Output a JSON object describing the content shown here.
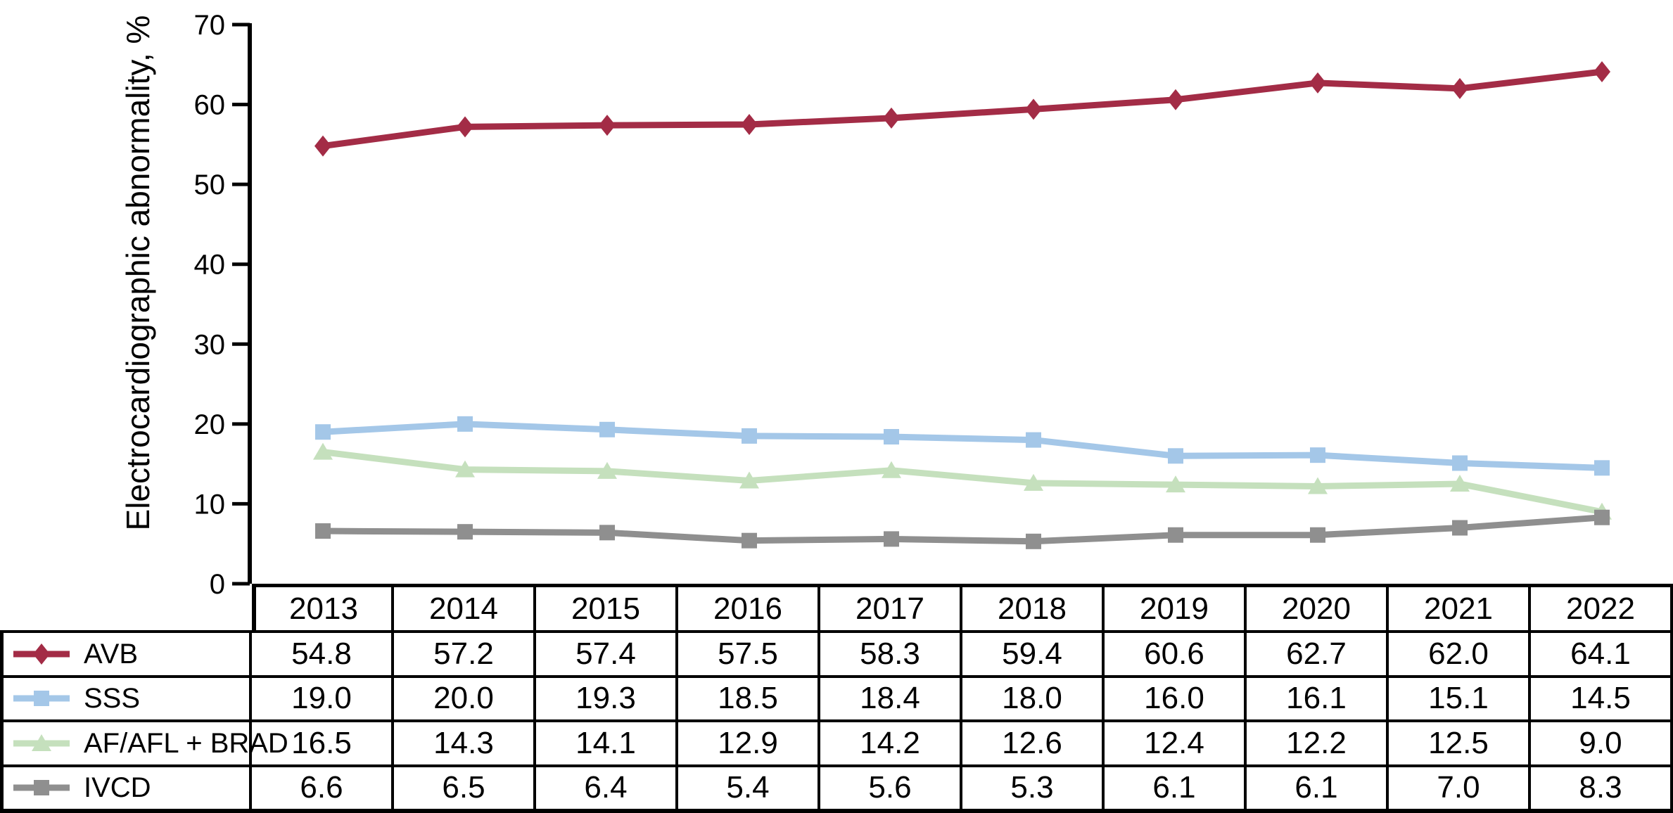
{
  "chart_data": {
    "type": "line",
    "title": "",
    "ylabel": "Electrocardiographic abnormality, %",
    "xlabel": "",
    "ylim": [
      0,
      70
    ],
    "yticks": [
      0,
      10,
      20,
      30,
      40,
      50,
      60,
      70
    ],
    "grid": false,
    "legend_position": "table-left-column",
    "categories": [
      "2013",
      "2014",
      "2015",
      "2016",
      "2017",
      "2018",
      "2019",
      "2020",
      "2021",
      "2022"
    ],
    "series": [
      {
        "name": "AVB",
        "marker": "diamond",
        "color": "#A32C46",
        "values": [
          54.8,
          57.2,
          57.4,
          57.5,
          58.3,
          59.4,
          60.6,
          62.7,
          62.0,
          64.1
        ]
      },
      {
        "name": "SSS",
        "marker": "square",
        "color": "#A4C7E8",
        "values": [
          19.0,
          20.0,
          19.3,
          18.5,
          18.4,
          18.0,
          16.0,
          16.1,
          15.1,
          14.5
        ]
      },
      {
        "name": "AF/AFL + BRAD",
        "marker": "triangle",
        "color": "#C5E0BD",
        "values": [
          16.5,
          14.3,
          14.1,
          12.9,
          14.2,
          12.6,
          12.4,
          12.2,
          12.5,
          9.0
        ]
      },
      {
        "name": "IVCD",
        "marker": "square",
        "color": "#8F8F8F",
        "values": [
          6.6,
          6.5,
          6.4,
          5.4,
          5.6,
          5.3,
          6.1,
          6.1,
          7.0,
          8.3
        ]
      }
    ]
  },
  "table": {
    "header_years": [
      "2013",
      "2014",
      "2015",
      "2016",
      "2017",
      "2018",
      "2019",
      "2020",
      "2021",
      "2022"
    ],
    "rows": [
      {
        "label": "AVB",
        "values": [
          "54.8",
          "57.2",
          "57.4",
          "57.5",
          "58.3",
          "59.4",
          "60.6",
          "62.7",
          "62.0",
          "64.1"
        ]
      },
      {
        "label": "SSS",
        "values": [
          "19.0",
          "20.0",
          "19.3",
          "18.5",
          "18.4",
          "18.0",
          "16.0",
          "16.1",
          "15.1",
          "14.5"
        ]
      },
      {
        "label": "AF/AFL + BRAD",
        "values": [
          "16.5",
          "14.3",
          "14.1",
          "12.9",
          "14.2",
          "12.6",
          "12.4",
          "12.2",
          "12.5",
          "9.0"
        ]
      },
      {
        "label": "IVCD",
        "values": [
          "6.6",
          "6.5",
          "6.4",
          "5.4",
          "5.6",
          "5.3",
          "6.1",
          "6.1",
          "7.0",
          "8.3"
        ]
      }
    ]
  },
  "colors": {
    "axis": "#000000",
    "table_border": "#000000",
    "text": "#000000"
  }
}
